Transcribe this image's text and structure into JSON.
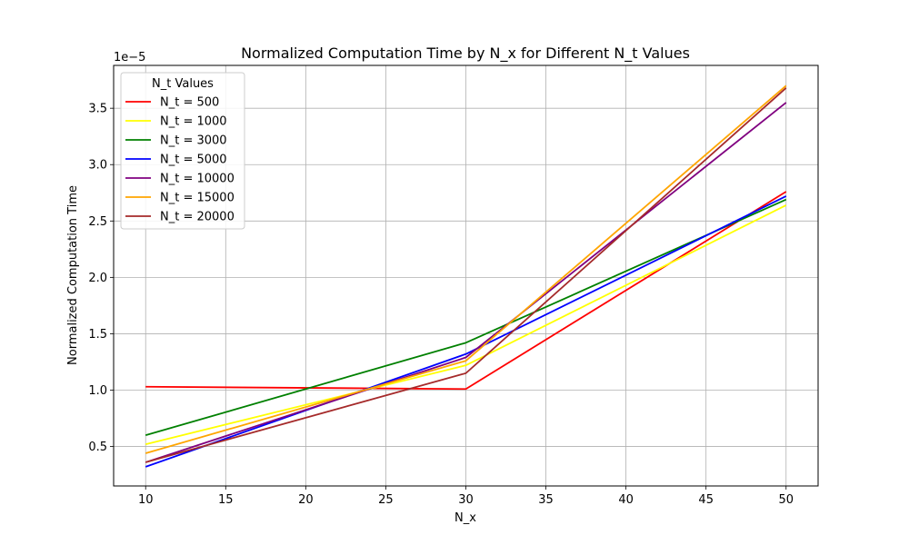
{
  "chart_data": {
    "type": "line",
    "title": "Normalized Computation Time by N_x for Different N_t Values",
    "xlabel": "N_x",
    "ylabel": "Normalized Computation Time",
    "y_offset_label": "1e−5",
    "y_scale_factor": 1e-05,
    "x": [
      10,
      30,
      50
    ],
    "xlim": [
      8,
      52
    ],
    "ylim": [
      0.15,
      3.88
    ],
    "xticks": [
      10,
      15,
      20,
      25,
      30,
      35,
      40,
      45,
      50
    ],
    "yticks": [
      0.5,
      1.0,
      1.5,
      2.0,
      2.5,
      3.0,
      3.5
    ],
    "ytick_labels": [
      "0.5",
      "1.0",
      "1.5",
      "2.0",
      "2.5",
      "3.0",
      "3.5"
    ],
    "grid": true,
    "legend": {
      "title": "N_t Values",
      "placement": "top-left"
    },
    "series": [
      {
        "name": "N_t = 500",
        "color": "#ff0000",
        "values": [
          1.03,
          1.01,
          2.76
        ]
      },
      {
        "name": "N_t = 1000",
        "color": "#ffff00",
        "values": [
          0.52,
          1.22,
          2.64
        ]
      },
      {
        "name": "N_t = 3000",
        "color": "#008000",
        "values": [
          0.6,
          1.42,
          2.69
        ]
      },
      {
        "name": "N_t = 5000",
        "color": "#0000ff",
        "values": [
          0.32,
          1.32,
          2.72
        ]
      },
      {
        "name": "N_t = 10000",
        "color": "#800080",
        "values": [
          0.36,
          1.29,
          3.55
        ]
      },
      {
        "name": "N_t = 15000",
        "color": "#ffa500",
        "values": [
          0.44,
          1.26,
          3.7
        ]
      },
      {
        "name": "N_t = 20000",
        "color": "#a52a2a",
        "values": [
          0.36,
          1.15,
          3.68
        ]
      }
    ]
  }
}
